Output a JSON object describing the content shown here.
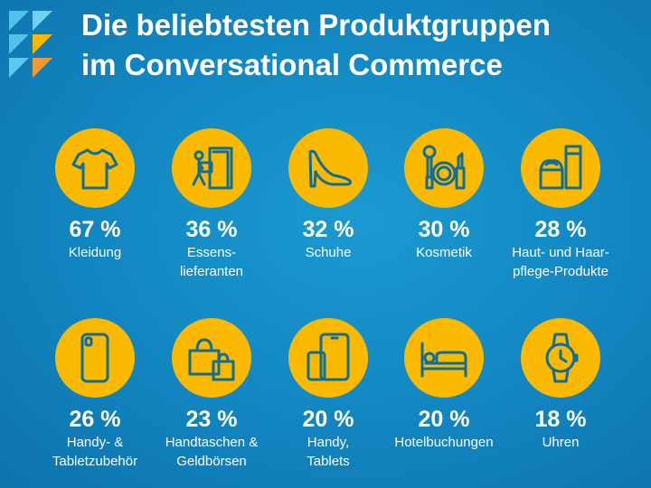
{
  "title_lines": [
    "Die beliebtesten Produktgruppen",
    "im Conversational Commerce"
  ],
  "colors": {
    "background": "#1389c4",
    "circle": "#fbba00",
    "icon": "#0f6d96",
    "text": "#ffffff"
  },
  "chart_data": {
    "type": "table",
    "title": "Die beliebtesten Produktgruppen im Conversational Commerce",
    "unit": "%",
    "items": [
      {
        "value": 67,
        "value_text": "67 %",
        "label": "Kleidung",
        "icon": "tshirt-icon"
      },
      {
        "value": 36,
        "value_text": "36 %",
        "label": "Essens-\nlieferanten",
        "icon": "delivery-person-icon"
      },
      {
        "value": 32,
        "value_text": "32 %",
        "label": "Schuhe",
        "icon": "high-heel-shoe-icon"
      },
      {
        "value": 30,
        "value_text": "30 %",
        "label": "Kosmetik",
        "icon": "cosmetics-icon"
      },
      {
        "value": 28,
        "value_text": "28 %",
        "label": "Haut- und Haar-\npflege-Produkte",
        "icon": "skincare-icon"
      },
      {
        "value": 26,
        "value_text": "26 %",
        "label": "Handy- &\nTabletzubehör",
        "icon": "phone-case-icon"
      },
      {
        "value": 23,
        "value_text": "23 %",
        "label": "Handtaschen &\nGeldbörsen",
        "icon": "shopping-bags-icon"
      },
      {
        "value": 20,
        "value_text": "20 %",
        "label": "Handy,\nTablets",
        "icon": "phone-tablet-icon"
      },
      {
        "value": 20,
        "value_text": "20 %",
        "label": "Hotelbuchungen",
        "icon": "hotel-bed-icon"
      },
      {
        "value": 18,
        "value_text": "18 %",
        "label": "Uhren",
        "icon": "watch-icon"
      }
    ]
  }
}
